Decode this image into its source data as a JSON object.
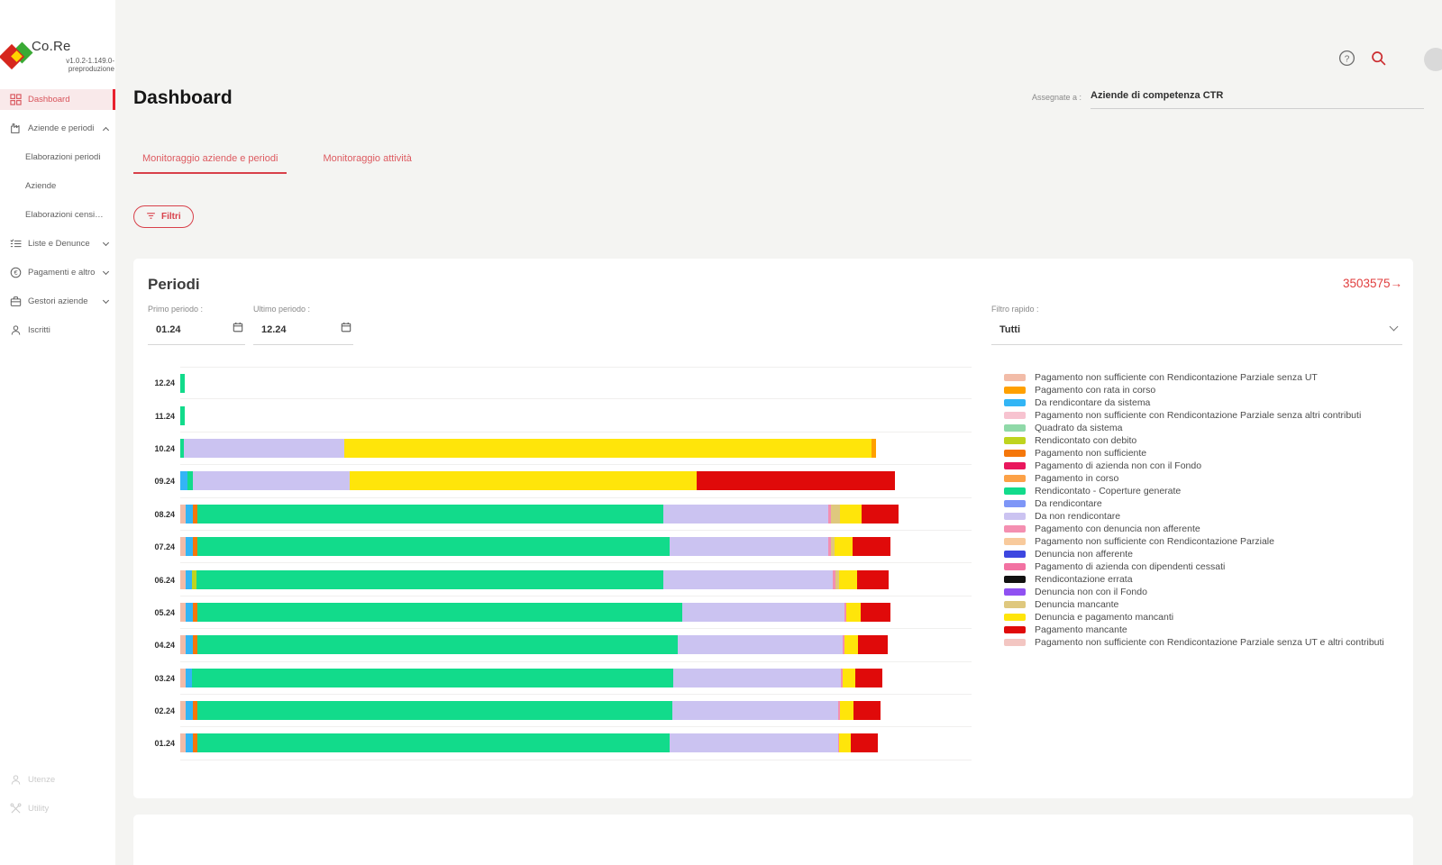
{
  "app": {
    "name": "Co.Re",
    "version": "v1.0.2-1.149.0-",
    "environment": "preproduzione"
  },
  "colors": {
    "accent_red": "#D8404A",
    "active_bar_red": "#E8212E",
    "brand_red": "#D6261D",
    "brand_green": "#3AAA35",
    "brand_yellow": "#FFD400",
    "main_background": "#F4F4F2",
    "card_background": "#FFFFFF"
  },
  "sidebar": {
    "items": [
      {
        "label": "Dashboard",
        "icon": "dashboard",
        "active": true
      },
      {
        "label": "Aziende e periodi",
        "icon": "factory",
        "chevron": "up"
      },
      {
        "label": "Elaborazioni periodi",
        "sub": true
      },
      {
        "label": "Aziende",
        "sub": true
      },
      {
        "label": "Elaborazioni censim...",
        "sub": true
      },
      {
        "label": "Liste e Denunce",
        "icon": "list",
        "chevron": "down"
      },
      {
        "label": "Pagamenti e altro",
        "icon": "euro",
        "chevron": "down"
      },
      {
        "label": "Gestori aziende",
        "icon": "briefcase",
        "chevron": "down"
      },
      {
        "label": "Iscritti",
        "icon": "person"
      }
    ],
    "footer_items": [
      {
        "label": "Utenze",
        "icon": "person"
      },
      {
        "label": "Utility",
        "icon": "tools"
      }
    ]
  },
  "topbar": {
    "help_icon": "help-circle",
    "search_icon": "magnifier"
  },
  "page": {
    "title": "Dashboard",
    "assigned_label": "Assegnate a :",
    "assigned_value": "Aziende di competenza CTR"
  },
  "tabs": {
    "items": [
      {
        "label": "Monitoraggio aziende e periodi",
        "active": true
      },
      {
        "label": "Monitoraggio attività",
        "active": false
      }
    ]
  },
  "toolbar": {
    "filters_label": "Filtri"
  },
  "periodi": {
    "title": "Periodi",
    "count_link": "3503575",
    "count_link_arrow": "→",
    "fields": {
      "primo_label": "Primo periodo :",
      "primo_value": "01.24",
      "ultimo_label": "Ultimo periodo :",
      "ultimo_value": "12.24",
      "filtro_label": "Filtro rapido :",
      "filtro_value": "Tutti"
    }
  },
  "chart_data": {
    "type": "bar",
    "orientation": "horizontal",
    "stacked": true,
    "title": "Periodi",
    "categories": [
      "12.24",
      "11.24",
      "10.24",
      "09.24",
      "08.24",
      "07.24",
      "06.24",
      "05.24",
      "04.24",
      "03.24",
      "02.24",
      "01.24"
    ],
    "x_axis": {
      "tick_labels_visible": false,
      "units": "percent of plot width (estimated from pixels)"
    },
    "grid": "horizontal row separators only",
    "legend_position": "right",
    "legend": [
      {
        "key": "pns_rp_senza_ut",
        "label": "Pagamento non sufficiente con Rendicontazione Parziale senza UT",
        "color": "#F2BCA8"
      },
      {
        "key": "rata_in_corso",
        "label": "Pagamento con rata in corso",
        "color": "#FFA000"
      },
      {
        "key": "da_rend_sistema",
        "label": "Da rendicontare da sistema",
        "color": "#33B5F5"
      },
      {
        "key": "pns_rp_senza_altri",
        "label": "Pagamento non sufficiente con Rendicontazione Parziale senza altri contributi",
        "color": "#F7C3D0"
      },
      {
        "key": "quadrato_sistema",
        "label": "Quadrato da sistema",
        "color": "#8FD9A8"
      },
      {
        "key": "rend_con_debito",
        "label": "Rendicontato con debito",
        "color": "#BFD41F"
      },
      {
        "key": "pag_non_suff",
        "label": "Pagamento non sufficiente",
        "color": "#F5770A"
      },
      {
        "key": "pag_azienda_non_fondo",
        "label": "Pagamento di azienda non con il Fondo",
        "color": "#E9175D"
      },
      {
        "key": "pag_in_corso",
        "label": "Pagamento in corso",
        "color": "#FCA147"
      },
      {
        "key": "rend_coperture",
        "label": "Rendicontato - Coperture generate",
        "color": "#12DB8B"
      },
      {
        "key": "da_rendicontare",
        "label": "Da rendicontare",
        "color": "#7E96F7"
      },
      {
        "key": "da_non_rendicontare",
        "label": "Da non rendicontare",
        "color": "#CBC3F1"
      },
      {
        "key": "pag_denuncia_non_aff",
        "label": "Pagamento con denuncia non afferente",
        "color": "#F48FB1"
      },
      {
        "key": "pns_rp",
        "label": "Pagamento non sufficiente con Rendicontazione Parziale",
        "color": "#F8CA9C"
      },
      {
        "key": "denuncia_non_aff",
        "label": "Denuncia non afferente",
        "color": "#3D47E0"
      },
      {
        "key": "pag_dipendenti_cessati",
        "label": "Pagamento di azienda con dipendenti cessati",
        "color": "#F272A2"
      },
      {
        "key": "rend_errata",
        "label": "Rendicontazione errata",
        "color": "#111111"
      },
      {
        "key": "denuncia_non_fondo",
        "label": "Denuncia non con il Fondo",
        "color": "#9051F2"
      },
      {
        "key": "denuncia_mancante",
        "label": "Denuncia mancante",
        "color": "#DFC87E"
      },
      {
        "key": "denuncia_pag_mancanti",
        "label": "Denuncia e pagamento mancanti",
        "color": "#FFE50A"
      },
      {
        "key": "pag_mancante",
        "label": "Pagamento mancante",
        "color": "#E00A0A"
      },
      {
        "key": "pns_rp_senza_ut_altri",
        "label": "Pagamento non sufficiente con Rendicontazione Parziale senza UT e altri contributi",
        "color": "#F3C6C2"
      }
    ],
    "bars": [
      {
        "category": "12.24",
        "segments": [
          [
            "rend_coperture",
            0.6
          ]
        ]
      },
      {
        "category": "11.24",
        "segments": [
          [
            "rend_coperture",
            0.6
          ]
        ]
      },
      {
        "category": "10.24",
        "segments": [
          [
            "rend_coperture",
            0.5
          ],
          [
            "da_non_rendicontare",
            20.2
          ],
          [
            "denuncia_pag_mancanti",
            66.7
          ],
          [
            "rata_in_corso",
            0.5
          ]
        ]
      },
      {
        "category": "09.24",
        "segments": [
          [
            "da_rend_sistema",
            0.9
          ],
          [
            "rend_coperture",
            0.7
          ],
          [
            "da_non_rendicontare",
            19.8
          ],
          [
            "denuncia_pag_mancanti",
            43.9
          ],
          [
            "pag_mancante",
            25.0
          ]
        ]
      },
      {
        "category": "08.24",
        "segments": [
          [
            "pns_rp_senza_ut",
            0.7
          ],
          [
            "da_rend_sistema",
            0.9
          ],
          [
            "pag_non_suff",
            0.6
          ],
          [
            "rend_coperture",
            58.9
          ],
          [
            "da_non_rendicontare",
            20.8
          ],
          [
            "pag_denuncia_non_aff",
            0.3
          ],
          [
            "denuncia_mancante",
            1.2
          ],
          [
            "denuncia_pag_mancanti",
            2.7
          ],
          [
            "pag_mancante",
            4.7
          ]
        ]
      },
      {
        "category": "07.24",
        "segments": [
          [
            "pns_rp_senza_ut",
            0.7
          ],
          [
            "da_rend_sistema",
            0.9
          ],
          [
            "pag_non_suff",
            0.6
          ],
          [
            "rend_coperture",
            59.7
          ],
          [
            "da_non_rendicontare",
            20.0
          ],
          [
            "pag_denuncia_non_aff",
            0.3
          ],
          [
            "denuncia_mancante",
            0.5
          ],
          [
            "denuncia_pag_mancanti",
            2.3
          ],
          [
            "pag_mancante",
            4.8
          ]
        ]
      },
      {
        "category": "06.24",
        "segments": [
          [
            "pns_rp_senza_ut",
            0.7
          ],
          [
            "da_rend_sistema",
            0.8
          ],
          [
            "rend_con_debito",
            0.6
          ],
          [
            "rend_coperture",
            59.0
          ],
          [
            "da_non_rendicontare",
            21.4
          ],
          [
            "pag_denuncia_non_aff",
            0.3
          ],
          [
            "denuncia_mancante",
            0.5
          ],
          [
            "denuncia_pag_mancanti",
            2.2
          ],
          [
            "pag_mancante",
            4.0
          ]
        ]
      },
      {
        "category": "05.24",
        "segments": [
          [
            "pns_rp_senza_ut",
            0.7
          ],
          [
            "da_rend_sistema",
            0.9
          ],
          [
            "pag_non_suff",
            0.6
          ],
          [
            "rend_coperture",
            61.2
          ],
          [
            "da_non_rendicontare",
            20.6
          ],
          [
            "pag_denuncia_non_aff",
            0.2
          ],
          [
            "denuncia_pag_mancanti",
            1.8
          ],
          [
            "pag_mancante",
            3.7
          ]
        ]
      },
      {
        "category": "04.24",
        "segments": [
          [
            "pns_rp_senza_ut",
            0.7
          ],
          [
            "da_rend_sistema",
            0.9
          ],
          [
            "pag_non_suff",
            0.6
          ],
          [
            "rend_coperture",
            60.7
          ],
          [
            "da_non_rendicontare",
            20.8
          ],
          [
            "pag_denuncia_non_aff",
            0.2
          ],
          [
            "denuncia_pag_mancanti",
            1.8
          ],
          [
            "pag_mancante",
            3.7
          ]
        ]
      },
      {
        "category": "03.24",
        "segments": [
          [
            "pns_rp_senza_ut",
            0.7
          ],
          [
            "da_rend_sistema",
            0.8
          ],
          [
            "rend_coperture",
            60.8
          ],
          [
            "da_non_rendicontare",
            21.2
          ],
          [
            "pag_denuncia_non_aff",
            0.2
          ],
          [
            "denuncia_pag_mancanti",
            1.6
          ],
          [
            "pag_mancante",
            3.4
          ]
        ]
      },
      {
        "category": "02.24",
        "segments": [
          [
            "pns_rp_senza_ut",
            0.7
          ],
          [
            "da_rend_sistema",
            0.9
          ],
          [
            "pag_non_suff",
            0.6
          ],
          [
            "rend_coperture",
            60.0
          ],
          [
            "da_non_rendicontare",
            21.0
          ],
          [
            "pag_denuncia_non_aff",
            0.2
          ],
          [
            "denuncia_pag_mancanti",
            1.7
          ],
          [
            "pag_mancante",
            3.4
          ]
        ]
      },
      {
        "category": "01.24",
        "segments": [
          [
            "pns_rp_senza_ut",
            0.7
          ],
          [
            "da_rend_sistema",
            0.9
          ],
          [
            "pag_non_suff",
            0.6
          ],
          [
            "rend_coperture",
            59.7
          ],
          [
            "da_non_rendicontare",
            21.2
          ],
          [
            "pag_denuncia_non_aff",
            0.2
          ],
          [
            "denuncia_pag_mancanti",
            1.5
          ],
          [
            "pag_mancante",
            3.4
          ]
        ]
      }
    ]
  }
}
